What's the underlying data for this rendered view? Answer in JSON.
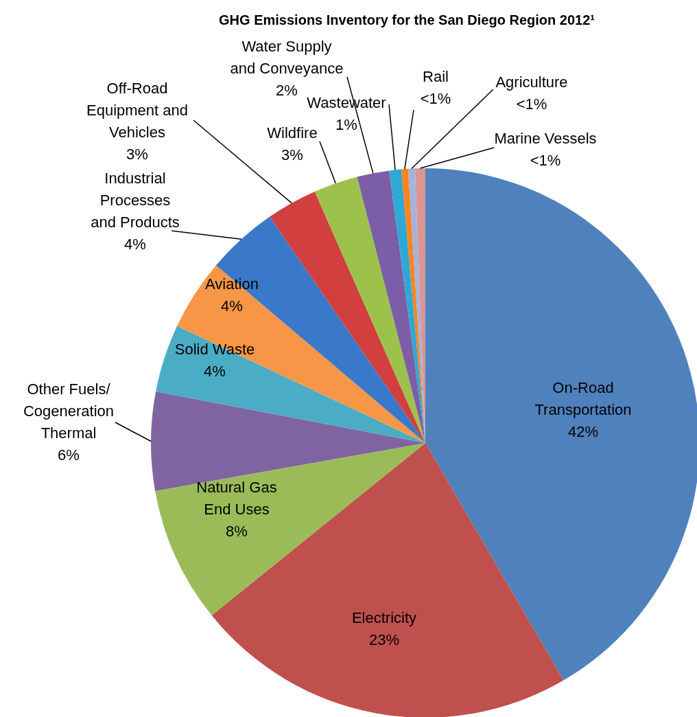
{
  "chart_data": {
    "type": "pie",
    "title": "GHG Emissions Inventory for the San Diego Region 2012¹",
    "categories": [
      "On-Road\nTransportation",
      "Electricity",
      "Natural Gas\nEnd Uses",
      "Other Fuels/\nCogeneration\nThermal",
      "Solid Waste",
      "Aviation",
      "Industrial\nProcesses\nand Products",
      "Off-Road\nEquipment and\nVehicles",
      "Wildfire",
      "Water Supply\nand Conveyance",
      "Wastewater",
      "Rail",
      "Agriculture",
      "Marine Vessels"
    ],
    "values": [
      41.6,
      22.6,
      8.0,
      5.8,
      4.0,
      4.2,
      4.2,
      3.0,
      2.6,
      1.9,
      0.7,
      0.4,
      0.4,
      0.6
    ],
    "value_labels": [
      "42%",
      "23%",
      "8%",
      "6%",
      "4%",
      "4%",
      "4%",
      "3%",
      "3%",
      "2%",
      "1%",
      "<1%",
      "<1%",
      "<1%"
    ],
    "colors": [
      "#4f81bd",
      "#c0504d",
      "#9bbb59",
      "#8064a2",
      "#4bacc6",
      "#f79646",
      "#3a78c9",
      "#d13f3f",
      "#9dc24b",
      "#7b5ea7",
      "#2fa8d6",
      "#f7861d",
      "#a5b3dc",
      "#d99694"
    ]
  }
}
